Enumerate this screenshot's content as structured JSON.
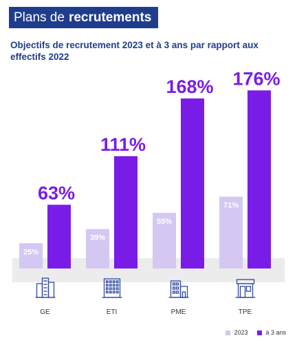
{
  "header": {
    "title_light": "Plans de",
    "title_bold": "recrutements"
  },
  "subtitle": "Objectifs de recrutement 2023 et à 3 ans par rapport aux effectifs 2022",
  "colors": {
    "bar_2023": "#d4c8f3",
    "bar_3ans": "#7a1ce8",
    "floor": "#ececec",
    "icon": "#2e49a0"
  },
  "chart_data": {
    "type": "bar",
    "categories": [
      "GE",
      "ETI",
      "PME",
      "TPE"
    ],
    "category_icons": [
      "office-buildings-icon",
      "office-block-icon",
      "apartment-building-icon",
      "shop-front-icon"
    ],
    "series": [
      {
        "name": "2023",
        "values": [
          25,
          39,
          55,
          71
        ],
        "labels": [
          "25%",
          "39%",
          "55%",
          "71%"
        ]
      },
      {
        "name": "à 3 ans",
        "values": [
          63,
          111,
          168,
          176
        ],
        "labels": [
          "63%",
          "111%",
          "168%",
          "176%"
        ]
      }
    ],
    "ylim": [
      0,
      200
    ],
    "legend_position": "bottom-right",
    "title": "Objectifs de recrutement 2023 et à 3 ans par rapport aux effectifs 2022"
  }
}
